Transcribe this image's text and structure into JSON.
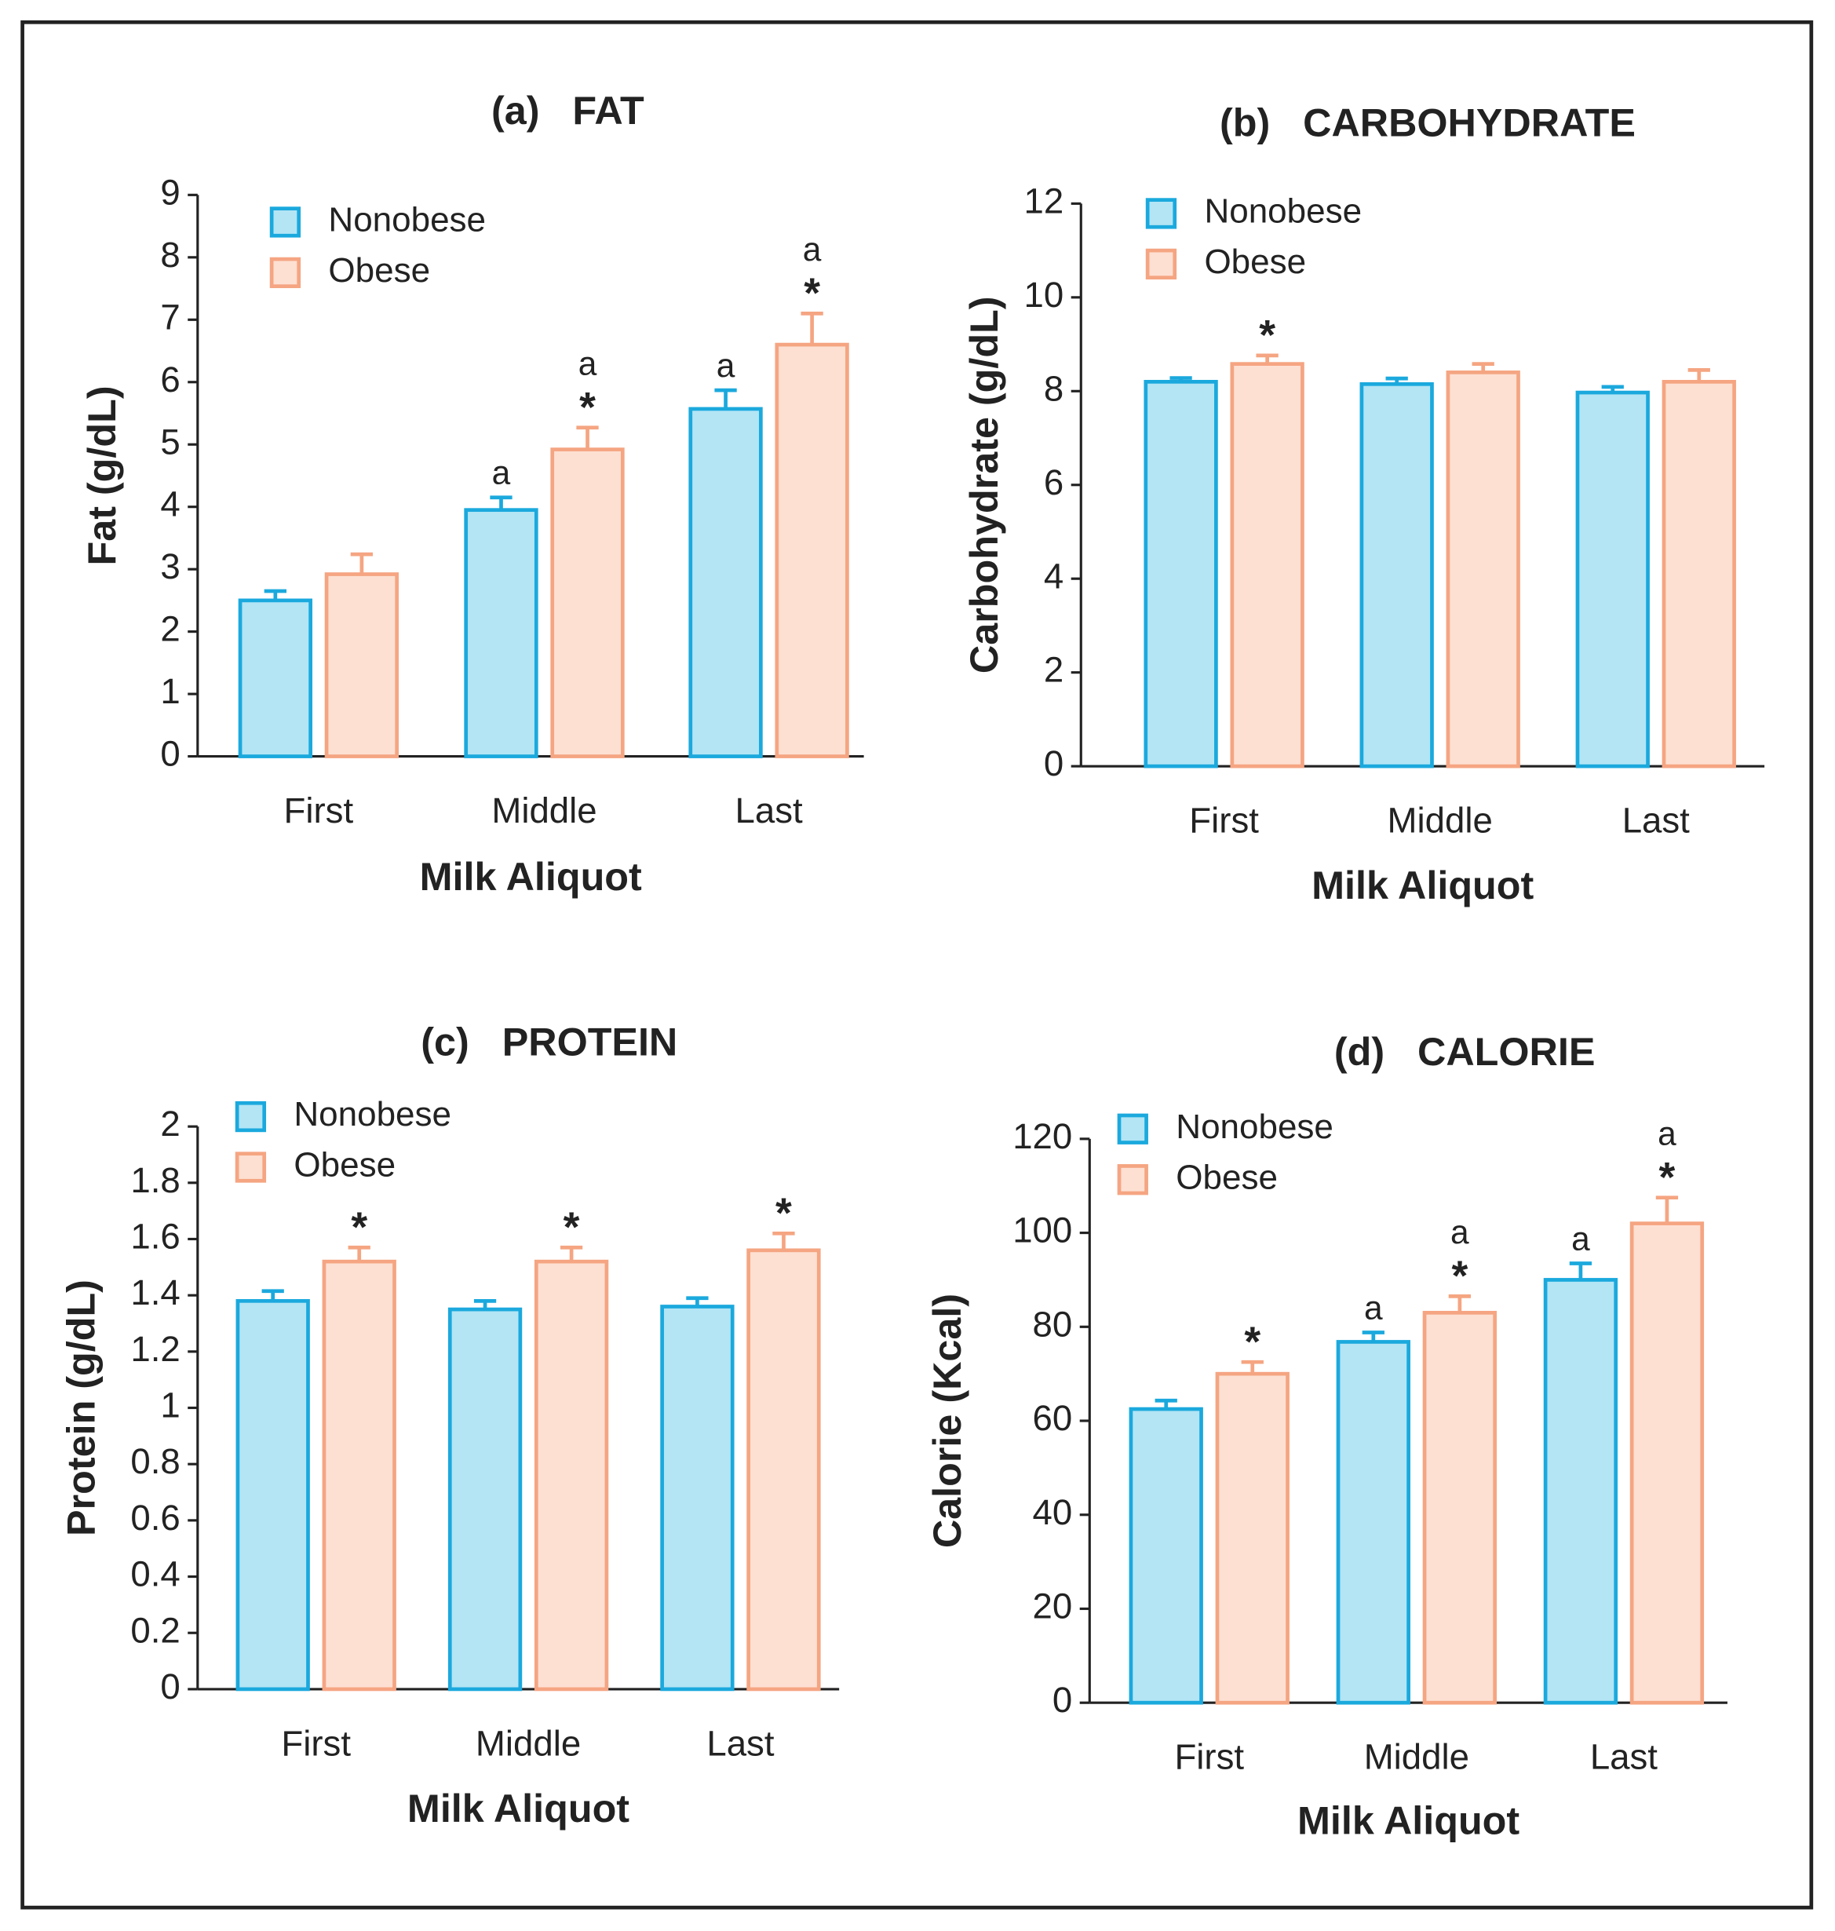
{
  "chart_data": [
    {
      "type": "bar",
      "title": "(a)   FAT",
      "y_label": "Fat (g/dL)",
      "x_label": "Milk Aliquot",
      "categories": [
        "First",
        "Middle",
        "Last"
      ],
      "series": [
        {
          "name": "Nonobese",
          "color": "#b3e5f5",
          "edge_color": "#1ba9dd",
          "values": [
            2.5,
            3.95,
            5.57
          ],
          "errors": [
            0.15,
            0.2,
            0.3
          ],
          "annotations": [
            [],
            [
              "a"
            ],
            [
              "a"
            ]
          ]
        },
        {
          "name": "Obese",
          "color": "#fde0d2",
          "edge_color": "#f5a582",
          "values": [
            2.92,
            4.92,
            6.6
          ],
          "errors": [
            0.32,
            0.35,
            0.5
          ],
          "annotations": [
            [],
            [
              "a",
              "*"
            ],
            [
              "a",
              "*"
            ]
          ]
        }
      ],
      "ylim": [
        0,
        9
      ],
      "yticks": [
        0,
        1,
        2,
        3,
        4,
        5,
        6,
        7,
        8,
        9
      ],
      "legend": "upper left"
    },
    {
      "type": "bar",
      "title": "(b)   CARBOHYDRATE",
      "y_label": "Carbohydrate (g/dL)",
      "x_label": "Milk Aliquot",
      "categories": [
        "First",
        "Middle",
        "Last"
      ],
      "series": [
        {
          "name": "Nonobese",
          "color": "#b3e5f5",
          "edge_color": "#1ba9dd",
          "values": [
            8.2,
            8.15,
            7.97
          ],
          "errors": [
            0.08,
            0.12,
            0.12
          ],
          "annotations": [
            [],
            [],
            []
          ]
        },
        {
          "name": "Obese",
          "color": "#fde0d2",
          "edge_color": "#f5a582",
          "values": [
            8.58,
            8.4,
            8.2
          ],
          "errors": [
            0.18,
            0.18,
            0.25
          ],
          "annotations": [
            [
              "*"
            ],
            [],
            []
          ]
        }
      ],
      "ylim": [
        0,
        12
      ],
      "yticks": [
        0,
        2,
        4,
        6,
        8,
        10,
        12
      ],
      "legend": "upper left"
    },
    {
      "type": "bar",
      "title": "(c)   PROTEIN",
      "y_label": "Protein (g/dL)",
      "x_label": "Milk Aliquot",
      "categories": [
        "First",
        "Middle",
        "Last"
      ],
      "series": [
        {
          "name": "Nonobese",
          "color": "#b3e5f5",
          "edge_color": "#1ba9dd",
          "values": [
            1.38,
            1.35,
            1.36
          ],
          "errors": [
            0.035,
            0.03,
            0.03
          ],
          "annotations": [
            [],
            [],
            []
          ]
        },
        {
          "name": "Obese",
          "color": "#fde0d2",
          "edge_color": "#f5a582",
          "values": [
            1.52,
            1.52,
            1.56
          ],
          "errors": [
            0.05,
            0.05,
            0.06
          ],
          "annotations": [
            [
              "*"
            ],
            [
              "*"
            ],
            [
              "*"
            ]
          ]
        }
      ],
      "ylim": [
        0,
        2
      ],
      "yticks": [
        0,
        0.2,
        0.4,
        0.6,
        0.8,
        1,
        1.2,
        1.4,
        1.6,
        1.8,
        2
      ],
      "legend": "upper left"
    },
    {
      "type": "bar",
      "title": "(d)   CALORIE",
      "y_label": "Calorie (Kcal)",
      "x_label": "Milk Aliquot",
      "categories": [
        "First",
        "Middle",
        "Last"
      ],
      "series": [
        {
          "name": "Nonobese",
          "color": "#b3e5f5",
          "edge_color": "#1ba9dd",
          "values": [
            62.5,
            76.8,
            90
          ],
          "errors": [
            1.8,
            2,
            3.5
          ],
          "annotations": [
            [],
            [
              "a"
            ],
            [
              "a"
            ]
          ]
        },
        {
          "name": "Obese",
          "color": "#fde0d2",
          "edge_color": "#f5a582",
          "values": [
            70,
            83,
            102
          ],
          "errors": [
            2.5,
            3.5,
            5.5
          ],
          "annotations": [
            [
              "*"
            ],
            [
              "a",
              "*"
            ],
            [
              "a",
              "*"
            ]
          ]
        }
      ],
      "ylim": [
        0,
        120
      ],
      "yticks": [
        0,
        20,
        40,
        60,
        80,
        100,
        120
      ],
      "legend": "upper left"
    }
  ]
}
